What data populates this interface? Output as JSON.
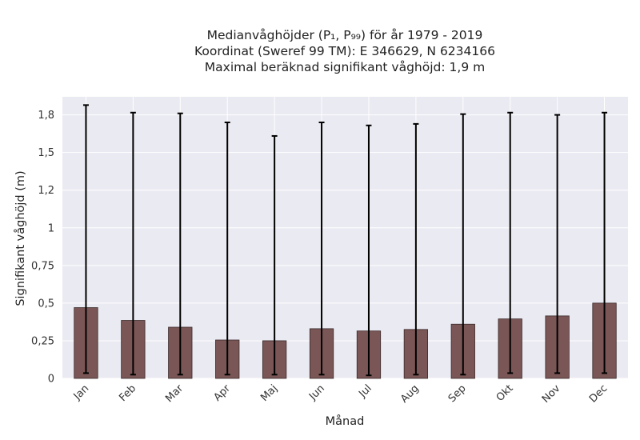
{
  "chart_data": {
    "type": "bar",
    "title_lines": [
      "Medianvåghöjder (P₁, P₉₉) för år 1979 - 2019",
      "Koordinat (Sweref 99 TM): E 346629, N 6234166",
      "Maximal beräknad signifikant våghöjd: 1,9 m"
    ],
    "xlabel": "Månad",
    "ylabel": "Signifikant våghöjd (m)",
    "categories": [
      "Jan",
      "Feb",
      "Mar",
      "Apr",
      "Maj",
      "Jun",
      "Jul",
      "Aug",
      "Sep",
      "Okt",
      "Nov",
      "Dec"
    ],
    "values": [
      0.47,
      0.385,
      0.34,
      0.255,
      0.25,
      0.33,
      0.315,
      0.325,
      0.36,
      0.395,
      0.415,
      0.5
    ],
    "err_low": [
      0.035,
      0.025,
      0.025,
      0.025,
      0.025,
      0.025,
      0.02,
      0.025,
      0.025,
      0.035,
      0.035,
      0.035
    ],
    "err_high": [
      1.815,
      1.765,
      1.76,
      1.7,
      1.61,
      1.7,
      1.68,
      1.69,
      1.755,
      1.765,
      1.75,
      1.765
    ],
    "ylim": [
      0,
      1.87
    ],
    "yticks": [
      {
        "value": 0,
        "label": "0"
      },
      {
        "value": 0.25,
        "label": "0,25"
      },
      {
        "value": 0.5,
        "label": "0,5"
      },
      {
        "value": 0.75,
        "label": "0,75"
      },
      {
        "value": 1.0,
        "label": "1"
      },
      {
        "value": 1.25,
        "label": "1,2"
      },
      {
        "value": 1.5,
        "label": "1,5"
      },
      {
        "value": 1.75,
        "label": "1,8"
      }
    ],
    "grid": true,
    "colors": {
      "bar": "#7a5656",
      "bar_edge": "#3a2a2a",
      "error": "#000000",
      "plot_bg": "#eaeaf2",
      "grid": "#ffffff"
    }
  }
}
